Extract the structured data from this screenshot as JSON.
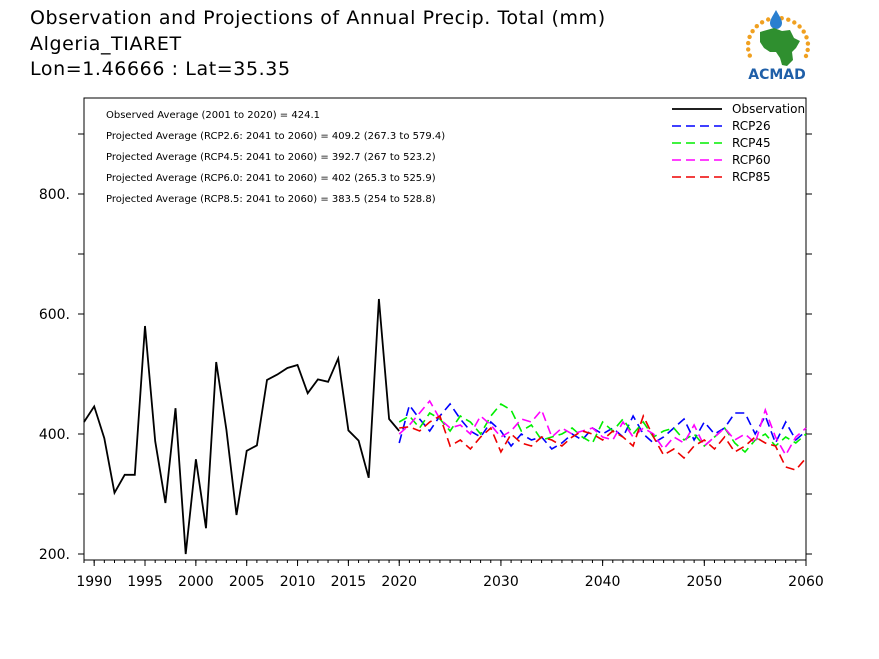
{
  "header": {
    "title": "Observation and Projections of Annual Precip. Total (mm)",
    "location": "Algeria_TIARET",
    "coords": "Lon=1.46666 : Lat=35.35"
  },
  "logo": {
    "text": "ACMAD",
    "icon": "africa-map-icon",
    "color_text": "#1f5fa8",
    "color_map": "#2f8f2f",
    "color_rays": "#f0a020",
    "color_drop": "#2a7fd0"
  },
  "stats": [
    "Observed Average (2001 to 2020) = 424.1",
    "Projected Average (RCP2.6: 2041 to 2060) = 409.2 (267.3 to 579.4)",
    "Projected Average (RCP4.5: 2041 to 2060) = 392.7 (267 to 523.2)",
    "Projected Average (RCP6.0: 2041 to 2060) = 402 (265.3 to 525.9)",
    "Projected Average (RCP8.5: 2041 to 2060) = 383.5 (254 to 528.8)"
  ],
  "chart_data": {
    "type": "line",
    "xlim": [
      1989,
      2060
    ],
    "ylim": [
      190,
      960
    ],
    "x_ticks": [
      {
        "value": 1990,
        "label": "1990"
      },
      {
        "value": 1995,
        "label": "1995"
      },
      {
        "value": 2000,
        "label": "2000"
      },
      {
        "value": 2005,
        "label": "2005"
      },
      {
        "value": 2010,
        "label": "2010"
      },
      {
        "value": 2015,
        "label": "2015"
      },
      {
        "value": 2020,
        "label": "2020"
      },
      {
        "value": 2030,
        "label": "2030"
      },
      {
        "value": 2040,
        "label": "2040"
      },
      {
        "value": 2050,
        "label": "2050"
      },
      {
        "value": 2060,
        "label": "2060"
      }
    ],
    "y_ticks": [
      {
        "value": 200,
        "label": "200."
      },
      {
        "value": 400,
        "label": "400."
      },
      {
        "value": 600,
        "label": "600."
      },
      {
        "value": 800,
        "label": "800."
      }
    ],
    "y_minor_ticks": [
      300,
      500,
      700,
      900
    ],
    "legend_position": "top-right",
    "series": [
      {
        "name": "Observation",
        "color": "#000000",
        "dash": "solid",
        "x": [
          1989,
          1990,
          1991,
          1992,
          1993,
          1994,
          1995,
          1996,
          1997,
          1998,
          1999,
          2000,
          2001,
          2002,
          2003,
          2004,
          2005,
          2006,
          2007,
          2008,
          2009,
          2010,
          2011,
          2012,
          2013,
          2014,
          2015,
          2016,
          2017,
          2018,
          2019,
          2020
        ],
        "y": [
          420,
          446,
          393,
          302,
          332,
          332,
          580,
          388,
          285,
          443,
          200,
          358,
          243,
          520,
          407,
          265,
          372,
          381,
          490,
          499,
          510,
          515,
          468,
          491,
          487,
          526,
          406,
          389,
          327,
          625,
          425,
          405
        ]
      },
      {
        "name": "RCP26",
        "color": "#0000ff",
        "dash": "dashed",
        "x": [
          2020,
          2021,
          2022,
          2023,
          2024,
          2025,
          2026,
          2027,
          2028,
          2029,
          2030,
          2031,
          2032,
          2033,
          2034,
          2035,
          2036,
          2037,
          2038,
          2039,
          2040,
          2041,
          2042,
          2043,
          2044,
          2045,
          2046,
          2047,
          2048,
          2049,
          2050,
          2051,
          2052,
          2053,
          2054,
          2055,
          2056,
          2057,
          2058,
          2059,
          2060
        ],
        "y": [
          385,
          448,
          425,
          405,
          430,
          450,
          425,
          405,
          395,
          420,
          405,
          380,
          400,
          390,
          395,
          375,
          385,
          400,
          390,
          410,
          400,
          410,
          395,
          430,
          400,
          385,
          395,
          410,
          425,
          390,
          420,
          400,
          410,
          435,
          435,
          400,
          430,
          385,
          420,
          390,
          405
        ]
      },
      {
        "name": "RCP45",
        "color": "#00ee00",
        "dash": "dashed",
        "x": [
          2020,
          2021,
          2022,
          2023,
          2024,
          2025,
          2026,
          2027,
          2028,
          2029,
          2030,
          2031,
          2032,
          2033,
          2034,
          2035,
          2036,
          2037,
          2038,
          2039,
          2040,
          2041,
          2042,
          2043,
          2044,
          2045,
          2046,
          2047,
          2048,
          2049,
          2050,
          2051,
          2052,
          2053,
          2054,
          2055,
          2056,
          2057,
          2058,
          2059,
          2060
        ],
        "y": [
          420,
          430,
          410,
          435,
          425,
          405,
          430,
          420,
          400,
          430,
          450,
          440,
          405,
          415,
          390,
          395,
          400,
          410,
          395,
          385,
          420,
          405,
          425,
          400,
          420,
          395,
          405,
          410,
          390,
          400,
          380,
          395,
          410,
          385,
          370,
          390,
          400,
          380,
          395,
          385,
          400
        ]
      },
      {
        "name": "RCP60",
        "color": "#ff00ff",
        "dash": "dashed",
        "x": [
          2020,
          2021,
          2022,
          2023,
          2024,
          2025,
          2026,
          2027,
          2028,
          2029,
          2030,
          2031,
          2032,
          2033,
          2034,
          2035,
          2036,
          2037,
          2038,
          2039,
          2040,
          2041,
          2042,
          2043,
          2044,
          2045,
          2046,
          2047,
          2048,
          2049,
          2050,
          2051,
          2052,
          2053,
          2054,
          2055,
          2056,
          2057,
          2058,
          2059,
          2060
        ],
        "y": [
          400,
          415,
          435,
          455,
          425,
          410,
          415,
          400,
          430,
          415,
          395,
          405,
          425,
          420,
          440,
          395,
          410,
          400,
          405,
          410,
          395,
          390,
          420,
          395,
          410,
          400,
          375,
          395,
          385,
          415,
          380,
          395,
          410,
          390,
          400,
          385,
          440,
          395,
          365,
          395,
          410
        ]
      },
      {
        "name": "RCP85",
        "color": "#ee0000",
        "dash": "dashed",
        "x": [
          2020,
          2021,
          2022,
          2023,
          2024,
          2025,
          2026,
          2027,
          2028,
          2029,
          2030,
          2031,
          2032,
          2033,
          2034,
          2035,
          2036,
          2037,
          2038,
          2039,
          2040,
          2041,
          2042,
          2043,
          2044,
          2045,
          2046,
          2047,
          2048,
          2049,
          2050,
          2051,
          2052,
          2053,
          2054,
          2055,
          2056,
          2057,
          2058,
          2059,
          2060
        ],
        "y": [
          410,
          412,
          405,
          420,
          430,
          380,
          390,
          375,
          395,
          410,
          370,
          400,
          385,
          380,
          395,
          390,
          380,
          395,
          405,
          400,
          390,
          405,
          395,
          380,
          430,
          395,
          365,
          375,
          360,
          380,
          390,
          375,
          395,
          370,
          380,
          395,
          385,
          380,
          345,
          340,
          360
        ]
      }
    ]
  }
}
